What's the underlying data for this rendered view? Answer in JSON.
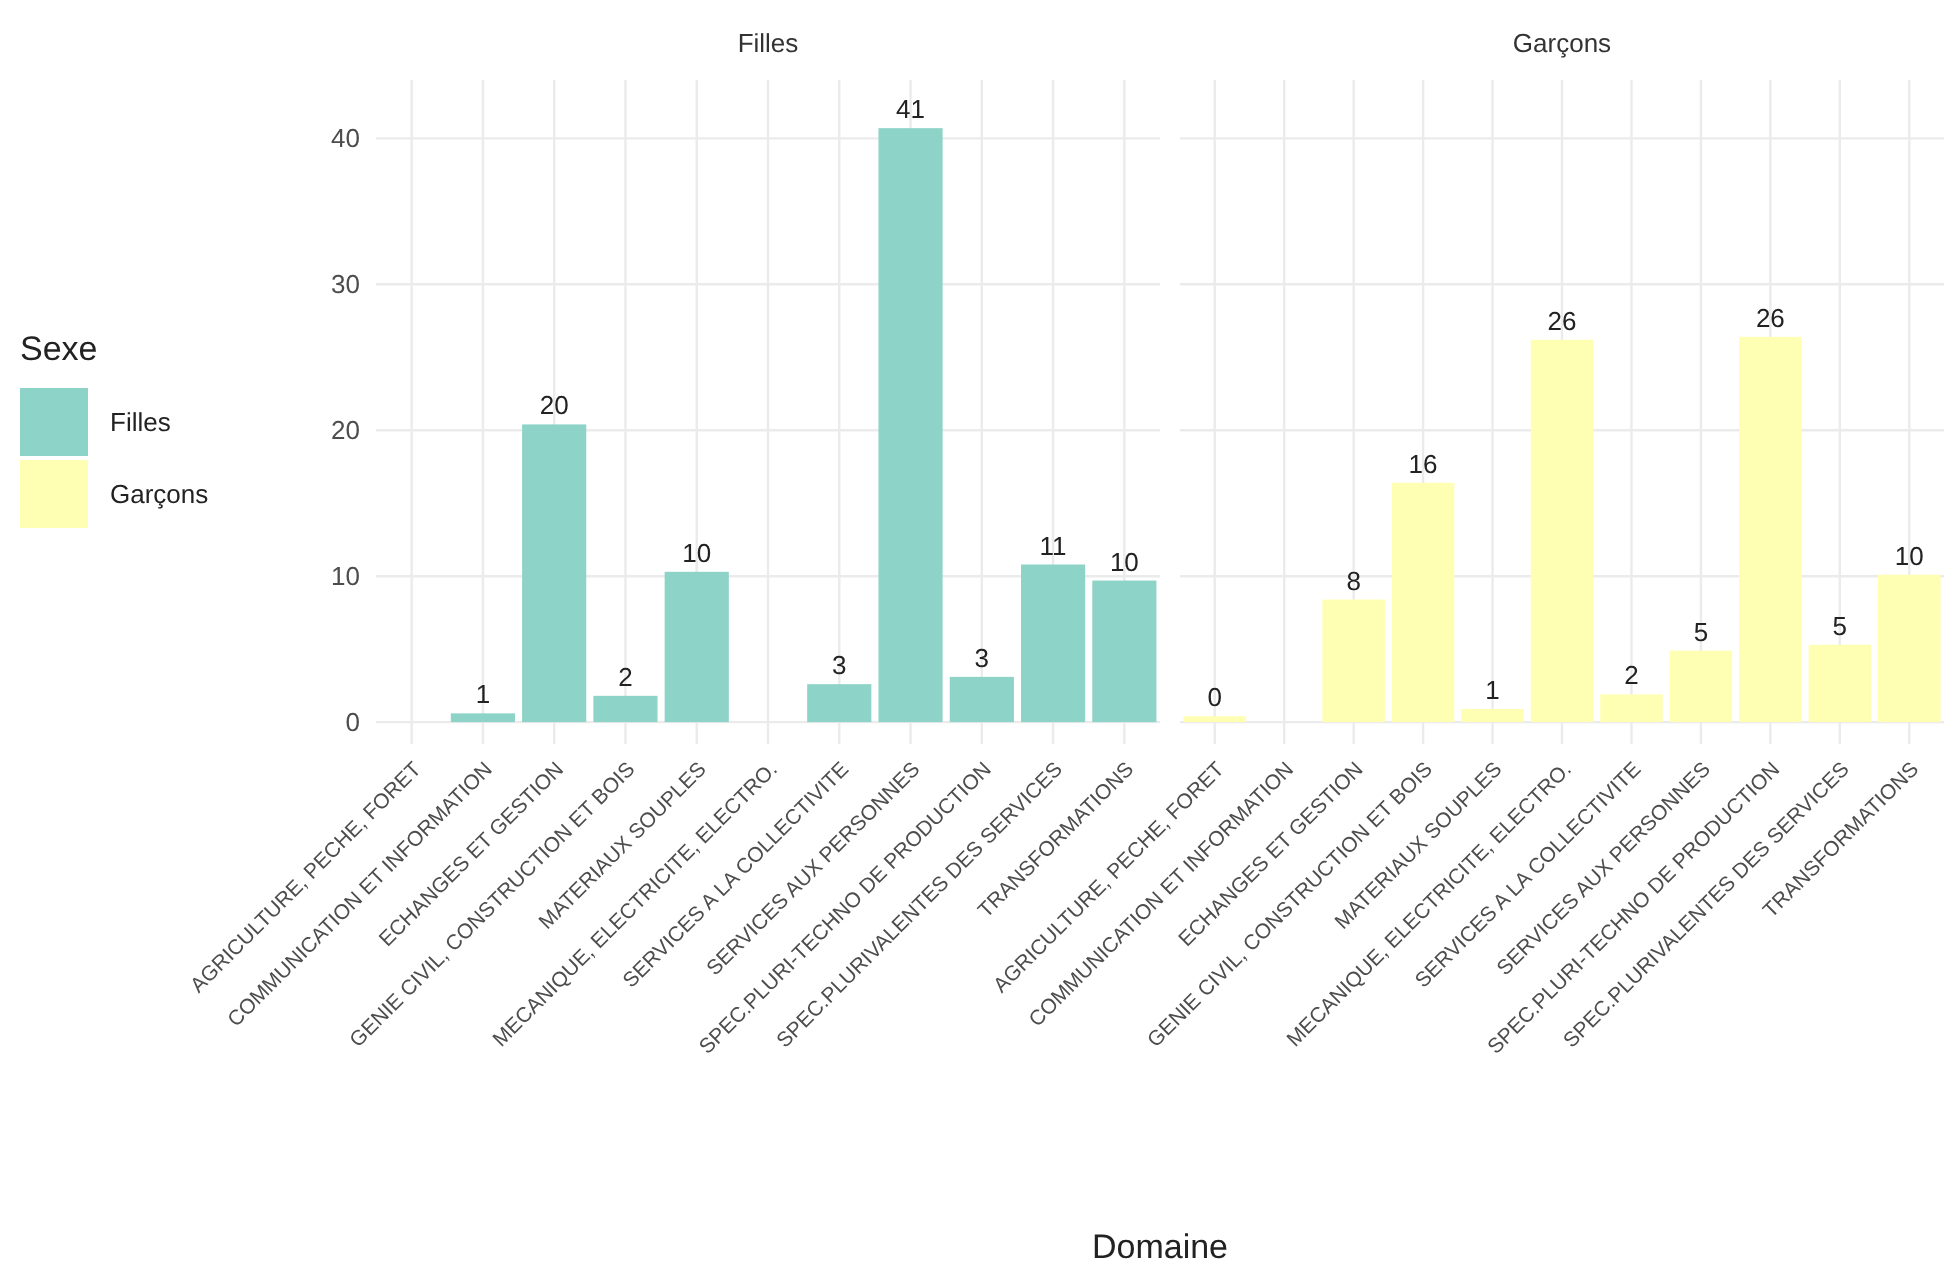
{
  "chart_data": [
    {
      "type": "bar",
      "title": "Filles",
      "xlabel": "Domaine",
      "legend_title": "Sexe",
      "legend": "left",
      "grid": true,
      "categories": [
        "AGRICULTURE, PECHE, FORET",
        "COMMUNICATION ET INFORMATION",
        "ECHANGES ET GESTION",
        "GENIE CIVIL, CONSTRUCTION ET BOIS",
        "MATERIAUX SOUPLES",
        "MECANIQUE, ELECTRICITE, ELECTRO.",
        "SERVICES A LA COLLECTIVITE",
        "SERVICES AUX PERSONNES",
        "SPEC.PLURI-TECHNO DE PRODUCTION",
        "SPEC.PLURIVALENTES DES SERVICES",
        "TRANSFORMATIONS"
      ],
      "series": [
        {
          "name": "Filles",
          "color": "#8dd3c7",
          "values": [
            null,
            0.6,
            20.4,
            1.8,
            10.3,
            null,
            2.6,
            40.7,
            3.1,
            10.8,
            9.7
          ],
          "value_labels": [
            null,
            "1",
            "20",
            "2",
            "10",
            null,
            "3",
            "41",
            "3",
            "11",
            "10"
          ]
        }
      ],
      "ylim": [
        -1.5,
        44
      ],
      "yticks": [
        0,
        10,
        20,
        30,
        40
      ]
    },
    {
      "type": "bar",
      "title": "Garçons",
      "grid": true,
      "tick_labels": "x",
      "categories": [
        "AGRICULTURE, PECHE, FORET",
        "COMMUNICATION ET INFORMATION",
        "ECHANGES ET GESTION",
        "GENIE CIVIL, CONSTRUCTION ET BOIS",
        "MATERIAUX SOUPLES",
        "MECANIQUE, ELECTRICITE, ELECTRO.",
        "SERVICES A LA COLLECTIVITE",
        "SERVICES AUX PERSONNES",
        "SPEC.PLURI-TECHNO DE PRODUCTION",
        "SPEC.PLURIVALENTES DES SERVICES",
        "TRANSFORMATIONS"
      ],
      "series": [
        {
          "name": "Garçons",
          "color": "#ffffb3",
          "values": [
            0.4,
            null,
            8.4,
            16.4,
            0.9,
            26.2,
            1.9,
            4.9,
            26.4,
            5.3,
            10.1
          ],
          "value_labels": [
            "0",
            null,
            "8",
            "16",
            "1",
            "26",
            "2",
            "5",
            "26",
            "5",
            "10"
          ]
        }
      ],
      "ylim": [
        -1.5,
        44
      ],
      "yticks": [
        0,
        10,
        20,
        30,
        40
      ]
    }
  ]
}
